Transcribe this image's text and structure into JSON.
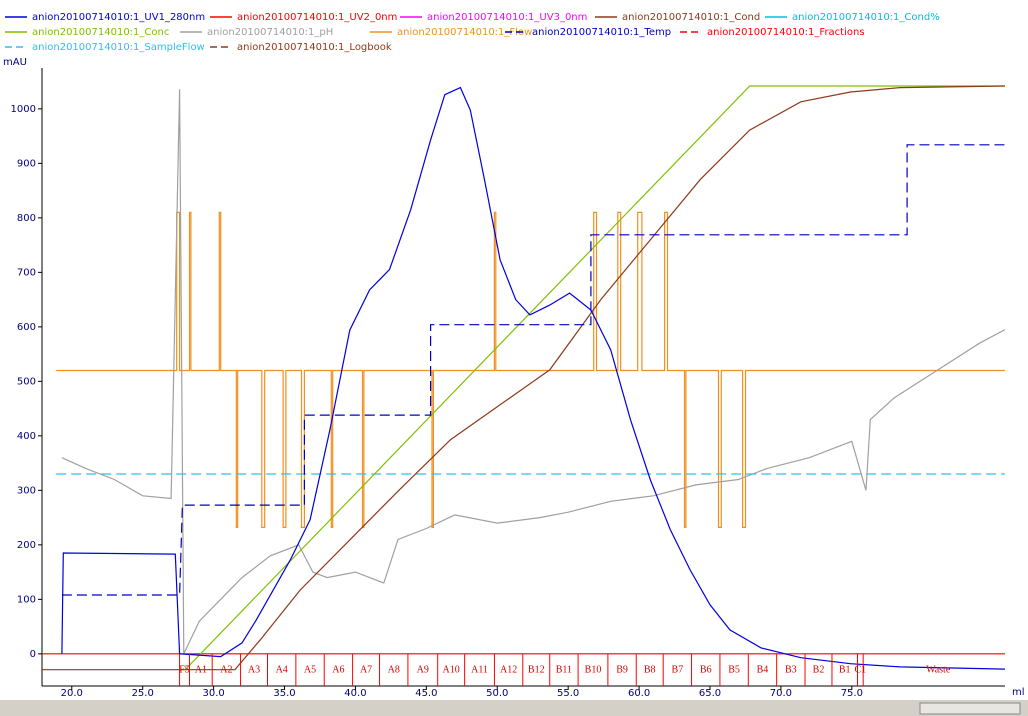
{
  "chart_data": {
    "type": "line",
    "y_label": "mAU",
    "x_label": "ml",
    "xlim": [
      17.9,
      85.8
    ],
    "ylim": [
      -59,
      1075
    ],
    "xticks": [
      {
        "value": 20,
        "label": "20.0"
      },
      {
        "value": 25,
        "label": "25.0"
      },
      {
        "value": 30,
        "label": "30.0"
      },
      {
        "value": 35,
        "label": "35.0"
      },
      {
        "value": 40,
        "label": "40.0"
      },
      {
        "value": 45,
        "label": "45.0"
      },
      {
        "value": 50,
        "label": "50.0"
      },
      {
        "value": 55,
        "label": "55.0"
      },
      {
        "value": 60,
        "label": "60.0"
      },
      {
        "value": 65,
        "label": "65.0"
      },
      {
        "value": 70,
        "label": "70.0"
      },
      {
        "value": 75,
        "label": "75.0"
      }
    ],
    "yticks": [
      0,
      100,
      200,
      300,
      400,
      500,
      600,
      700,
      800,
      900,
      1000
    ],
    "series": [
      {
        "name": "anion20100714010:1_UV1_280nm",
        "color": "#0000e0",
        "dash": false,
        "x": [
          19.3,
          19.4,
          27.3,
          27.6,
          30.5,
          32.0,
          33.0,
          35.4,
          36.8,
          38.2,
          39.6,
          41.0,
          42.4,
          43.9,
          45.3,
          46.3,
          47.4,
          48.1,
          49.1,
          50.2,
          51.3,
          52.3,
          53.7,
          55.1,
          56.6,
          58.0,
          59.4,
          60.8,
          62.2,
          63.6,
          65.0,
          66.4,
          68.6,
          71.4,
          74.9,
          78.4,
          85.8
        ],
        "values": [
          0,
          185,
          183,
          0,
          -5,
          20,
          62,
          172,
          246,
          411,
          594,
          668,
          705,
          815,
          943,
          1026,
          1039,
          998,
          870,
          723,
          650,
          622,
          640,
          662,
          631,
          558,
          429,
          319,
          228,
          154,
          90,
          44,
          11,
          -7,
          -18,
          -24,
          -28
        ]
      },
      {
        "name": "anion20100714010:1_UV2_0nm",
        "color": "#ff0000",
        "dash": false,
        "x": [
          17.9,
          85.8
        ],
        "values": [
          0,
          0
        ]
      },
      {
        "name": "anion20100714010:1_UV3_0nm",
        "color": "#ff00ff",
        "dash": false
      },
      {
        "name": "anion20100714010:1_Cond",
        "color": "#8b3a1a",
        "dash": false,
        "x": [
          17.9,
          31.5,
          33.3,
          36.1,
          39.6,
          43.1,
          46.7,
          50.2,
          53.7,
          57.3,
          60.8,
          64.3,
          67.8,
          71.4,
          74.9,
          78.4,
          85.8
        ],
        "values": [
          -29,
          -29,
          26,
          117,
          209,
          301,
          393,
          457,
          521,
          650,
          760,
          870,
          961,
          1013,
          1031,
          1039,
          1042
        ]
      },
      {
        "name": "anion20100714010:1_Cond%",
        "color": "#00c0e0",
        "dash": false
      },
      {
        "name": "anion20100714010:1_Conc",
        "color": "#80c000",
        "dash": false,
        "x": [
          28.0,
          67.8,
          85.8
        ],
        "values": [
          -29,
          1042,
          1042
        ]
      },
      {
        "name": "anion20100714010:1_pH",
        "color": "#a0a0a0",
        "dash": false,
        "x": [
          19.3,
          21,
          23,
          25,
          27,
          27.6,
          27.9,
          29,
          30.5,
          32,
          34,
          36,
          37,
          38,
          40,
          42,
          43,
          45,
          47,
          50,
          53,
          55,
          58,
          61,
          64,
          67,
          69,
          72,
          75,
          76,
          76.3,
          78,
          81,
          84,
          85.8
        ],
        "values": [
          360,
          340,
          320,
          290,
          285,
          1036,
          0,
          60,
          100,
          140,
          180,
          200,
          150,
          140,
          150,
          130,
          210,
          230,
          255,
          240,
          250,
          260,
          280,
          290,
          310,
          320,
          340,
          360,
          390,
          300,
          430,
          470,
          520,
          570,
          595
        ]
      },
      {
        "name": "anion20100714010:1_Flow",
        "color": "#f09020",
        "dash": false,
        "x": [
          18.9,
          27.4,
          27.4,
          27.6,
          27.6,
          28.3,
          28.3,
          28.4,
          28.4,
          30.4,
          30.4,
          30.5,
          30.5,
          31.6,
          31.6,
          31.7,
          31.7,
          33.4,
          33.4,
          33.6,
          33.6,
          34.9,
          34.9,
          35.1,
          35.1,
          36.2,
          36.2,
          36.4,
          36.4,
          38.3,
          38.3,
          38.4,
          38.4,
          40.5,
          40.5,
          40.6,
          40.6,
          45.4,
          45.4,
          45.5,
          45.5,
          49.8,
          49.8,
          49.9,
          49.9,
          56.8,
          56.8,
          57.0,
          57.0,
          58.5,
          58.5,
          58.7,
          58.7,
          59.9,
          59.9,
          60.2,
          60.2,
          61.8,
          61.8,
          62.0,
          62.0,
          63.2,
          63.2,
          63.3,
          63.3,
          65.6,
          65.6,
          65.8,
          65.8,
          67.3,
          67.3,
          67.5,
          67.5,
          85.8
        ],
        "values": [
          520,
          520,
          810,
          810,
          520,
          520,
          810,
          810,
          520,
          520,
          810,
          810,
          520,
          520,
          232,
          232,
          520,
          520,
          232,
          232,
          520,
          520,
          232,
          232,
          520,
          520,
          232,
          232,
          520,
          520,
          232,
          232,
          520,
          520,
          232,
          232,
          520,
          520,
          232,
          232,
          520,
          520,
          810,
          810,
          520,
          520,
          810,
          810,
          520,
          520,
          810,
          810,
          520,
          520,
          810,
          810,
          520,
          520,
          810,
          810,
          520,
          520,
          232,
          232,
          520,
          520,
          232,
          232,
          520,
          520,
          232,
          232,
          520,
          520
        ]
      },
      {
        "name": "anion20100714010:1_Temp",
        "color": "#0000c0",
        "dash": true,
        "x": [
          19.3,
          27.6,
          27.8,
          36.4,
          36.4,
          45.3,
          45.3,
          56.6,
          56.6,
          78.9,
          78.9,
          85.8
        ],
        "values": [
          108,
          108,
          273,
          273,
          438,
          438,
          604,
          604,
          769,
          769,
          934,
          934
        ]
      },
      {
        "name": "anion20100714010:1_Fractions",
        "color": "#ff0000",
        "dash": true
      },
      {
        "name": "anion20100714010:1_SampleFlow",
        "color": "#30c0e8",
        "dash": true,
        "x": [
          18.9,
          85.8
        ],
        "values": [
          330,
          330
        ]
      },
      {
        "name": "anion20100714010:1_Logbook",
        "color": "#8b3a1a",
        "dash": true
      }
    ],
    "fractions": {
      "x": [
        27.6,
        28.3,
        29.9,
        31.9,
        33.8,
        35.8,
        37.8,
        39.8,
        41.7,
        43.7,
        45.8,
        47.7,
        49.8,
        51.8,
        53.7,
        55.7,
        57.8,
        59.8,
        61.7,
        63.7,
        65.7,
        67.7,
        69.7,
        71.7,
        73.6,
        75.4,
        75.8
      ],
      "labels": [
        "F5",
        "A1",
        "A2",
        "A3",
        "A4",
        "A5",
        "A6",
        "A7",
        "A8",
        "A9",
        "A10",
        "A11",
        "A12",
        "B12",
        "B11",
        "B10",
        "B9",
        "B8",
        "B7",
        "B6",
        "B5",
        "B4",
        "B3",
        "B2",
        "B1",
        "C1",
        "Waste"
      ]
    }
  }
}
